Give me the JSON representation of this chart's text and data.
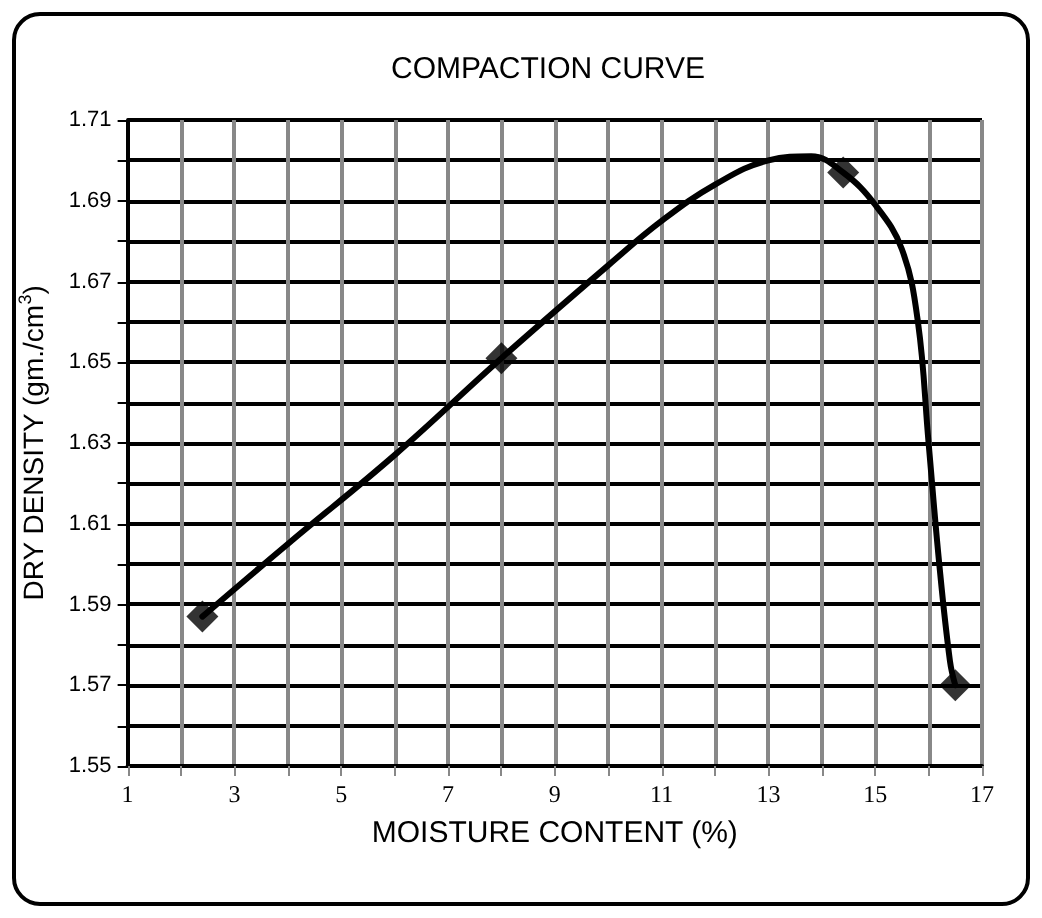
{
  "chart_data": {
    "type": "scatter",
    "title": "COMPACTION CURVE",
    "xlabel": "MOISTURE CONTENT (%)",
    "ylabel": "DRY DENSITY (gm./cm$^{3}$)",
    "xlim": [
      1,
      17
    ],
    "ylim": [
      1.55,
      1.71
    ],
    "xticks": [
      1,
      {
        "value": 2,
        "label": null
      },
      3,
      {
        "value": 4,
        "label": null
      },
      5,
      {
        "value": 6,
        "label": null
      },
      7,
      {
        "value": 8,
        "label": null
      },
      9,
      {
        "value": 10,
        "label": null
      },
      11,
      {
        "value": 12,
        "label": null
      },
      13,
      {
        "value": 14,
        "label": null
      },
      15,
      {
        "value": 16,
        "label": null
      },
      17
    ],
    "yticks": [
      1.55,
      {
        "value": 1.56,
        "label": null
      },
      1.57,
      {
        "value": 1.58,
        "label": null
      },
      1.59,
      {
        "value": 1.6,
        "label": null
      },
      1.61,
      {
        "value": 1.62,
        "label": null
      },
      1.63,
      {
        "value": 1.64,
        "label": null
      },
      1.65,
      {
        "value": 1.66,
        "label": null
      },
      1.67,
      {
        "value": 1.68,
        "label": null
      },
      1.69,
      {
        "value": 1.7,
        "label": null
      },
      1.71
    ],
    "grid": true,
    "series": [
      {
        "type": "line",
        "color": "#000000",
        "marker": "none",
        "line_style": "solid",
        "x": [
          2.4,
          4,
          6,
          8,
          10,
          11,
          12,
          13,
          13.8,
          14.4,
          15,
          15.5,
          15.8,
          16,
          16.2,
          16.4,
          16.5
        ],
        "values": [
          1.587,
          1.605,
          1.627,
          1.651,
          1.674,
          1.685,
          1.694,
          1.7,
          1.701,
          1.697,
          1.689,
          1.678,
          1.66,
          1.63,
          1.6,
          1.576,
          1.57
        ]
      },
      {
        "color": "#000000",
        "marker": "diamond",
        "x": [
          2.4,
          8,
          14.4,
          16.5
        ],
        "values": [
          1.587,
          1.651,
          1.697,
          1.57
        ]
      }
    ]
  }
}
